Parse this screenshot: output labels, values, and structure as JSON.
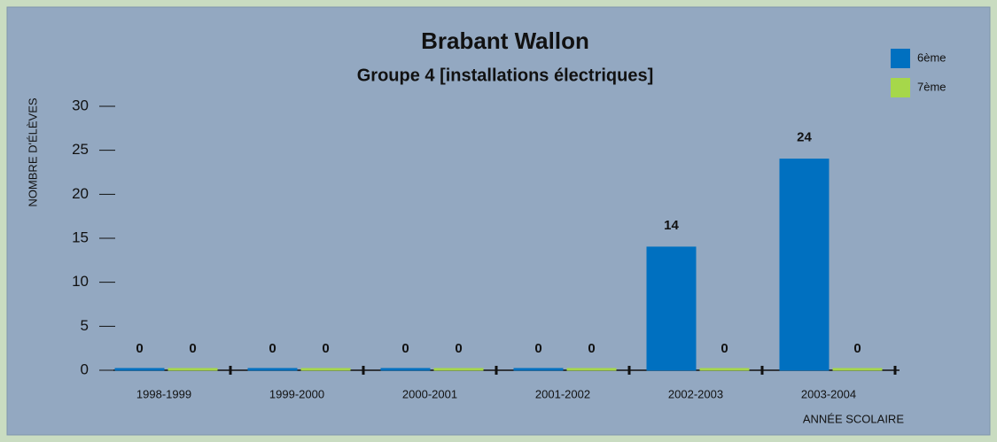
{
  "chart_data": {
    "type": "bar",
    "title": "Brabant Wallon",
    "subtitle": "Groupe 4 [installations électriques]",
    "y_label": "NOMBRE D'ÉLÈVES",
    "x_label": "ANNÉE SCOLAIRE",
    "categories": [
      "1998-1999",
      "1999-2000",
      "2000-2001",
      "2001-2002",
      "2002-2003",
      "2003-2004"
    ],
    "series": [
      {
        "name": "6ème",
        "color": "#0070c0",
        "values": [
          0,
          0,
          0,
          0,
          14,
          24
        ]
      },
      {
        "name": "7ème",
        "color": "#a6d74a",
        "values": [
          0,
          0,
          0,
          0,
          0,
          0
        ]
      }
    ],
    "ylim": [
      0,
      30
    ],
    "yticks": [
      0,
      5,
      10,
      15,
      20,
      25,
      30
    ],
    "legend": "top-right",
    "grid": false
  }
}
